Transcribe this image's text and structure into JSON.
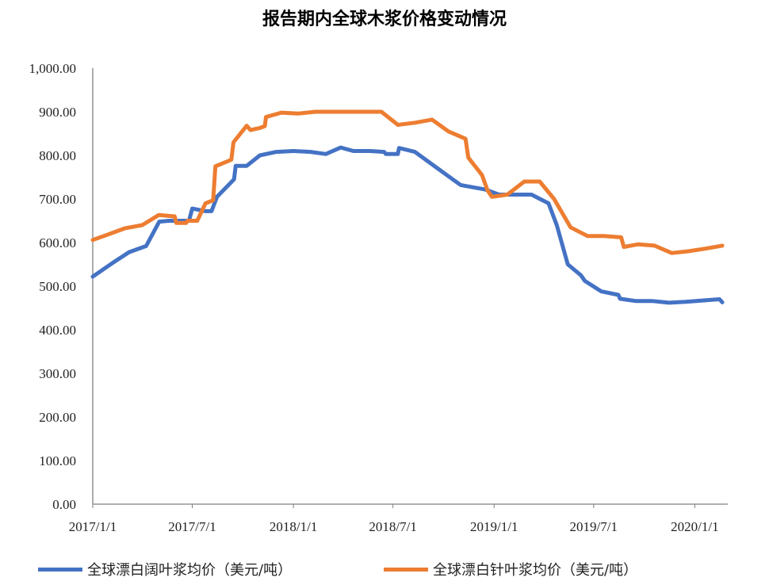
{
  "chart_data": {
    "type": "line",
    "title": "报告期内全球木浆价格变动情况",
    "xlabel": "",
    "ylabel": "",
    "ylim": [
      0,
      1000
    ],
    "yticks": [
      "0.00",
      "100.00",
      "200.00",
      "300.00",
      "400.00",
      "500.00",
      "600.00",
      "700.00",
      "800.00",
      "900.00",
      "1,000.00"
    ],
    "xlim": [
      "2017-01-01",
      "2020-03-01"
    ],
    "xticks": [
      {
        "date": "2017-01-01",
        "label": "2017/1/1"
      },
      {
        "date": "2017-07-01",
        "label": "2017/7/1"
      },
      {
        "date": "2018-01-01",
        "label": "2018/1/1"
      },
      {
        "date": "2018-07-01",
        "label": "2018/7/1"
      },
      {
        "date": "2019-01-01",
        "label": "2019/1/1"
      },
      {
        "date": "2019-07-01",
        "label": "2019/7/1"
      },
      {
        "date": "2020-01-01",
        "label": "2020/1/1"
      }
    ],
    "grid": false,
    "legend_position": "bottom",
    "series": [
      {
        "name": "全球漂白阔叶浆均价（美元/吨）",
        "color": "#4472C4",
        "points": [
          [
            "2017-01-01",
            522
          ],
          [
            "2017-02-08",
            555
          ],
          [
            "2017-03-08",
            578
          ],
          [
            "2017-04-08",
            592
          ],
          [
            "2017-05-02",
            648
          ],
          [
            "2017-05-20",
            650
          ],
          [
            "2017-06-08",
            650
          ],
          [
            "2017-06-25",
            650
          ],
          [
            "2017-07-01",
            678
          ],
          [
            "2017-07-25",
            672
          ],
          [
            "2017-08-05",
            672
          ],
          [
            "2017-08-15",
            705
          ],
          [
            "2017-09-15",
            745
          ],
          [
            "2017-09-18",
            776
          ],
          [
            "2017-10-08",
            776
          ],
          [
            "2017-11-01",
            800
          ],
          [
            "2017-12-01",
            808
          ],
          [
            "2018-01-01",
            810
          ],
          [
            "2018-02-01",
            808
          ],
          [
            "2018-03-01",
            803
          ],
          [
            "2018-03-28",
            818
          ],
          [
            "2018-04-20",
            810
          ],
          [
            "2018-05-20",
            810
          ],
          [
            "2018-06-15",
            808
          ],
          [
            "2018-06-18",
            803
          ],
          [
            "2018-07-10",
            803
          ],
          [
            "2018-07-12",
            817
          ],
          [
            "2018-08-10",
            808
          ],
          [
            "2018-09-15",
            775
          ],
          [
            "2018-10-20",
            743
          ],
          [
            "2018-11-01",
            732
          ],
          [
            "2018-12-15",
            722
          ],
          [
            "2019-01-10",
            710
          ],
          [
            "2019-02-10",
            710
          ],
          [
            "2019-03-10",
            710
          ],
          [
            "2019-04-10",
            690
          ],
          [
            "2019-04-25",
            640
          ],
          [
            "2019-05-15",
            550
          ],
          [
            "2019-06-08",
            525
          ],
          [
            "2019-06-15",
            512
          ],
          [
            "2019-07-15",
            488
          ],
          [
            "2019-08-15",
            480
          ],
          [
            "2019-08-18",
            471
          ],
          [
            "2019-09-15",
            466
          ],
          [
            "2019-10-15",
            466
          ],
          [
            "2019-11-15",
            462
          ],
          [
            "2019-12-15",
            464
          ],
          [
            "2020-01-15",
            467
          ],
          [
            "2020-02-15",
            470
          ],
          [
            "2020-02-20",
            463
          ]
        ]
      },
      {
        "name": "全球漂白针叶浆均价（美元/吨）",
        "color": "#ED7D31",
        "points": [
          [
            "2017-01-01",
            606
          ],
          [
            "2017-02-01",
            620
          ],
          [
            "2017-03-01",
            633
          ],
          [
            "2017-04-01",
            640
          ],
          [
            "2017-05-01",
            663
          ],
          [
            "2017-05-30",
            660
          ],
          [
            "2017-06-02",
            645
          ],
          [
            "2017-06-20",
            645
          ],
          [
            "2017-06-22",
            650
          ],
          [
            "2017-07-10",
            650
          ],
          [
            "2017-07-25",
            690
          ],
          [
            "2017-08-08",
            697
          ],
          [
            "2017-08-12",
            775
          ],
          [
            "2017-09-10",
            790
          ],
          [
            "2017-09-14",
            830
          ],
          [
            "2017-10-08",
            868
          ],
          [
            "2017-10-15",
            858
          ],
          [
            "2017-11-01",
            863
          ],
          [
            "2017-11-10",
            867
          ],
          [
            "2017-11-12",
            888
          ],
          [
            "2017-12-10",
            898
          ],
          [
            "2018-01-10",
            896
          ],
          [
            "2018-02-10",
            900
          ],
          [
            "2018-03-10",
            900
          ],
          [
            "2018-04-10",
            900
          ],
          [
            "2018-05-10",
            900
          ],
          [
            "2018-06-10",
            900
          ],
          [
            "2018-07-10",
            870
          ],
          [
            "2018-08-10",
            875
          ],
          [
            "2018-09-10",
            882
          ],
          [
            "2018-10-10",
            855
          ],
          [
            "2018-11-10",
            838
          ],
          [
            "2018-11-15",
            795
          ],
          [
            "2018-12-10",
            755
          ],
          [
            "2018-12-20",
            720
          ],
          [
            "2018-12-28",
            705
          ],
          [
            "2019-01-25",
            710
          ],
          [
            "2019-02-25",
            740
          ],
          [
            "2019-03-25",
            740
          ],
          [
            "2019-04-20",
            700
          ],
          [
            "2019-05-20",
            635
          ],
          [
            "2019-06-20",
            615
          ],
          [
            "2019-07-20",
            615
          ],
          [
            "2019-08-20",
            612
          ],
          [
            "2019-08-25",
            590
          ],
          [
            "2019-09-20",
            596
          ],
          [
            "2019-10-20",
            593
          ],
          [
            "2019-11-20",
            576
          ],
          [
            "2019-12-20",
            580
          ],
          [
            "2020-01-20",
            586
          ],
          [
            "2020-02-20",
            593
          ]
        ]
      }
    ]
  }
}
